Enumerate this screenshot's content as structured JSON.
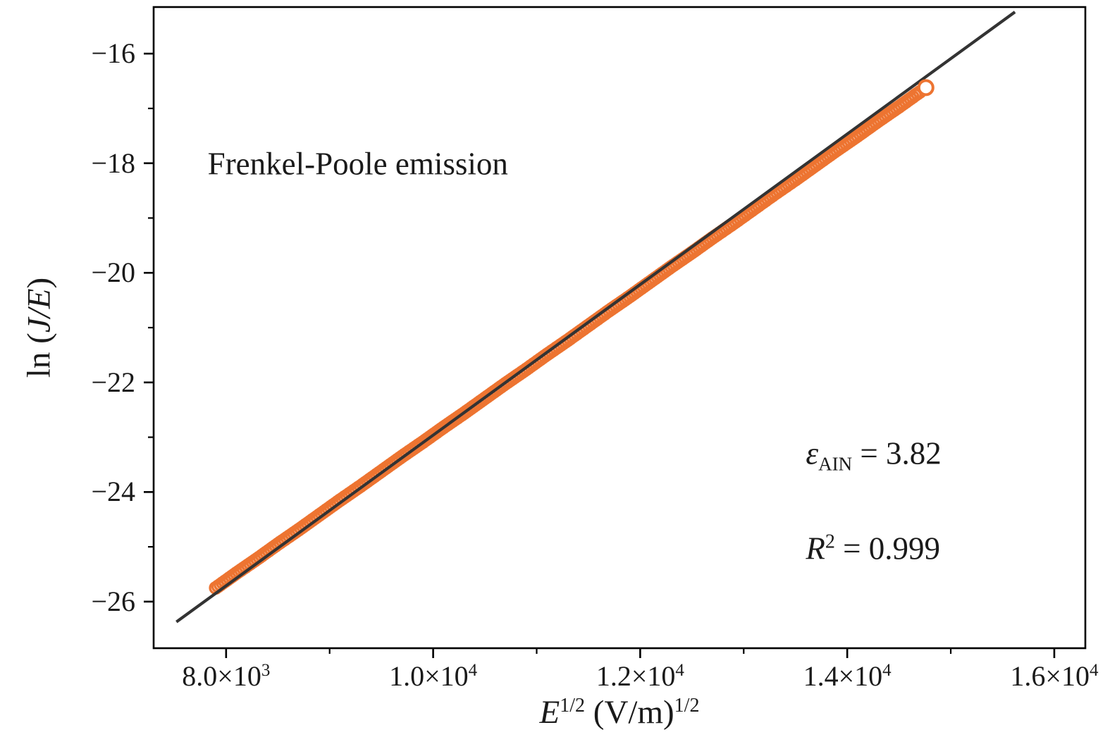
{
  "chart_data": {
    "type": "scatter",
    "title": "",
    "xlabel_parts": {
      "base": "E",
      "sup1": "1/2",
      "mid": " (V/m)",
      "sup2": "1/2"
    },
    "ylabel_parts": {
      "prefix": "ln (",
      "italic": "J/E",
      "suffix": ")"
    },
    "xlim": [
      7300,
      16300
    ],
    "ylim": [
      -26.85,
      -15.15
    ],
    "grid": false,
    "x_ticks": [
      {
        "value": 8000,
        "mantissa": "8.0×10",
        "exp": "3"
      },
      {
        "value": 10000,
        "mantissa": "1.0×10",
        "exp": "4"
      },
      {
        "value": 12000,
        "mantissa": "1.2×10",
        "exp": "4"
      },
      {
        "value": 14000,
        "mantissa": "1.4×10",
        "exp": "4"
      },
      {
        "value": 16000,
        "mantissa": "1.6×10",
        "exp": "4"
      }
    ],
    "x_minor_ticks": [
      9000,
      11000,
      13000,
      15000
    ],
    "y_ticks": [
      {
        "value": -16,
        "label": "−16"
      },
      {
        "value": -18,
        "label": "−18"
      },
      {
        "value": -20,
        "label": "−20"
      },
      {
        "value": -22,
        "label": "−22"
      },
      {
        "value": -24,
        "label": "−24"
      },
      {
        "value": -26,
        "label": "−26"
      }
    ],
    "y_minor_ticks": [
      -17,
      -19,
      -21,
      -23,
      -25
    ],
    "series": [
      {
        "name": "measured-data",
        "marker": "open-circle",
        "color": "#ed7431",
        "points": [
          [
            7900,
            -25.75
          ],
          [
            8100,
            -25.48
          ],
          [
            8300,
            -25.22
          ],
          [
            8500,
            -24.95
          ],
          [
            8700,
            -24.69
          ],
          [
            8900,
            -24.42
          ],
          [
            9100,
            -24.15
          ],
          [
            9300,
            -23.89
          ],
          [
            9500,
            -23.62
          ],
          [
            9700,
            -23.35
          ],
          [
            9900,
            -23.09
          ],
          [
            10100,
            -22.82
          ],
          [
            10300,
            -22.56
          ],
          [
            10500,
            -22.29
          ],
          [
            10700,
            -22.02
          ],
          [
            10900,
            -21.76
          ],
          [
            11100,
            -21.49
          ],
          [
            11300,
            -21.23
          ],
          [
            11500,
            -20.96
          ],
          [
            11700,
            -20.69
          ],
          [
            11900,
            -20.43
          ],
          [
            12100,
            -20.16
          ],
          [
            12300,
            -19.89
          ],
          [
            12500,
            -19.63
          ],
          [
            12700,
            -19.36
          ],
          [
            12900,
            -19.1
          ],
          [
            13100,
            -18.83
          ],
          [
            13300,
            -18.56
          ],
          [
            13500,
            -18.3
          ],
          [
            13700,
            -18.03
          ],
          [
            13900,
            -17.76
          ],
          [
            14100,
            -17.5
          ],
          [
            14300,
            -17.23
          ],
          [
            14500,
            -16.97
          ],
          [
            14700,
            -16.7
          ]
        ]
      }
    ],
    "fit_line": {
      "x1": 7520,
      "y1": -26.37,
      "x2": 15620,
      "y2": -15.24,
      "color": "#333333"
    },
    "end_marker": {
      "x": 14760,
      "y": -16.62
    },
    "annotations": {
      "title": {
        "text": "Frenkel-Poole emission",
        "fx": 0.058,
        "fy": 0.245
      },
      "epsilon": {
        "symbol": "ε",
        "sub": "AIN",
        "rest": " = 3.82",
        "fx": 0.7,
        "fy": 0.7
      },
      "r_squared": {
        "base": "R",
        "sup": "2",
        "rest": " = 0.999",
        "fx": 0.7,
        "fy": 0.845
      }
    },
    "colors": {
      "marker": "#ed7431",
      "fit_line": "#333333",
      "axis": "#000000"
    },
    "legend": "none"
  }
}
